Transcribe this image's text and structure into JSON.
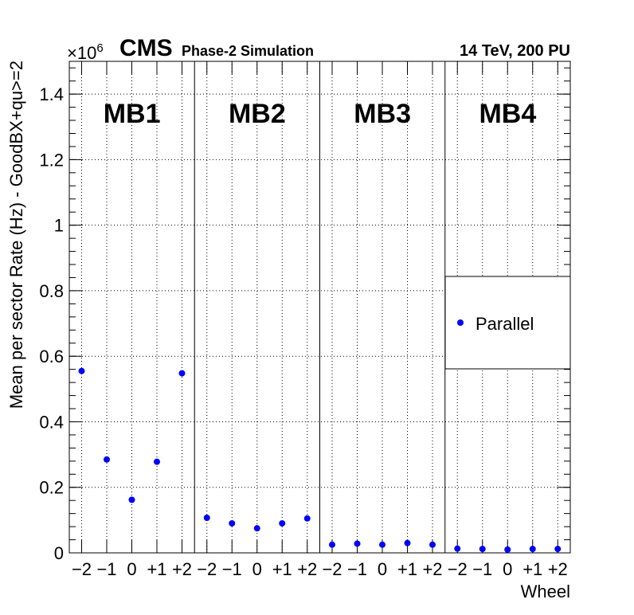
{
  "header": {
    "exponent_base": "×10",
    "exponent_power": "6",
    "experiment": "CMS",
    "subtitle": "Phase-2 Simulation",
    "energy_pileup": "14 TeV, 200 PU"
  },
  "colors": {
    "marker": "#0000ff",
    "axis": "#000000"
  },
  "chart_data": {
    "type": "scatter",
    "title": "",
    "xlabel": "Wheel",
    "ylabel": "Mean per sector Rate (Hz) - GoodBX+qu>=2",
    "y_scale_note": "×10^6",
    "ylim": [
      0,
      1.5
    ],
    "yticks": [
      0,
      0.2,
      0.4,
      0.6,
      0.8,
      1,
      1.2,
      1.4
    ],
    "ytick_labels": [
      "0",
      "0.2",
      "0.4",
      "0.6",
      "0.8",
      "1",
      "1.2",
      "1.4"
    ],
    "wheel_labels": [
      "−2",
      "−1",
      "0",
      "+1",
      "+2"
    ],
    "grid": true,
    "legend": {
      "position": "right-middle",
      "entries": [
        "Parallel"
      ]
    },
    "stations": [
      {
        "name": "MB1",
        "values": [
          0.555,
          0.285,
          0.162,
          0.278,
          0.548
        ]
      },
      {
        "name": "MB2",
        "values": [
          0.107,
          0.09,
          0.075,
          0.09,
          0.105
        ]
      },
      {
        "name": "MB3",
        "values": [
          0.025,
          0.028,
          0.025,
          0.03,
          0.025
        ]
      },
      {
        "name": "MB4",
        "values": [
          0.013,
          0.012,
          0.01,
          0.012,
          0.012
        ]
      }
    ],
    "series": [
      {
        "name": "Parallel",
        "marker": "circle"
      }
    ]
  }
}
